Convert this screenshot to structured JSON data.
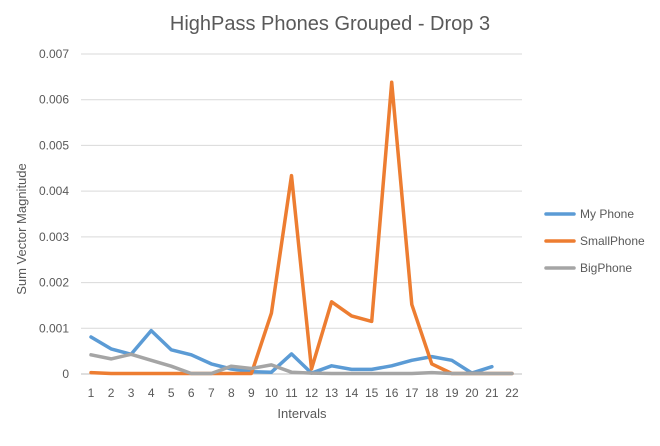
{
  "chart_data": {
    "type": "line",
    "title": "HighPass Phones Grouped - Drop 3",
    "xlabel": "Intervals",
    "ylabel": "Sum Vector Magnitude",
    "categories": [
      "1",
      "2",
      "3",
      "4",
      "5",
      "6",
      "7",
      "8",
      "9",
      "10",
      "11",
      "12",
      "13",
      "14",
      "15",
      "16",
      "17",
      "18",
      "19",
      "20",
      "21",
      "22"
    ],
    "ylim": [
      0,
      0.007
    ],
    "yticks": [
      "0",
      "0.001",
      "0.002",
      "0.003",
      "0.004",
      "0.005",
      "0.006",
      "0.007"
    ],
    "grid": true,
    "legend_position": "right",
    "series": [
      {
        "name": "My Phone",
        "color": "#5B9BD5",
        "values": [
          0.00081,
          0.00055,
          0.00043,
          0.00095,
          0.00053,
          0.00042,
          0.00022,
          0.00011,
          5e-05,
          4e-05,
          0.00044,
          2e-05,
          0.00018,
          0.0001,
          0.0001,
          0.00018,
          0.0003,
          0.00038,
          0.0003,
          2e-05,
          0.00016,
          null
        ]
      },
      {
        "name": "SmallPhone",
        "color": "#ED7D31",
        "values": [
          3e-05,
          1e-05,
          1e-05,
          1e-05,
          1e-05,
          1e-05,
          1e-05,
          1e-05,
          1e-05,
          0.00133,
          0.00434,
          0.00011,
          0.00158,
          0.00127,
          0.00115,
          0.00638,
          0.00152,
          0.00022,
          1e-05,
          1e-05,
          1e-05,
          1e-05
        ]
      },
      {
        "name": "BigPhone",
        "color": "#A5A5A5",
        "values": [
          0.00042,
          0.00033,
          0.00043,
          0.0003,
          0.00017,
          1e-05,
          1e-05,
          0.00017,
          0.00012,
          0.0002,
          4e-05,
          2e-05,
          1e-05,
          1e-05,
          1e-05,
          1e-05,
          1e-05,
          3e-05,
          1e-05,
          1e-05,
          1e-05,
          1e-05
        ]
      }
    ]
  }
}
